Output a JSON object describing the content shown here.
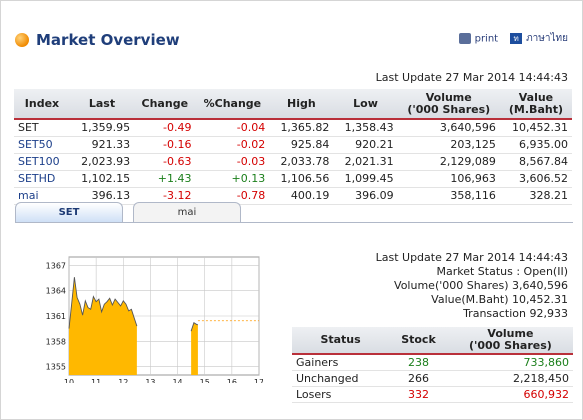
{
  "header": {
    "title": "Market Overview",
    "print_label": "print",
    "lang_label": "ภาษาไทย"
  },
  "last_update": "Last Update 27 Mar 2014 14:44:43",
  "index_table": {
    "columns": [
      "Index",
      "Last",
      "Change",
      "%Change",
      "High",
      "Low",
      "Volume\n('000 Shares)",
      "Value\n(M.Baht)"
    ],
    "rows": [
      {
        "name": "SET",
        "last": "1,359.95",
        "change": "-0.49",
        "pct": "-0.04",
        "high": "1,365.82",
        "low": "1,358.43",
        "volume": "3,640,596",
        "value": "10,452.31",
        "dir": "neg"
      },
      {
        "name": "SET50",
        "last": "921.33",
        "change": "-0.16",
        "pct": "-0.02",
        "high": "925.84",
        "low": "920.21",
        "volume": "203,125",
        "value": "6,935.00",
        "dir": "neg"
      },
      {
        "name": "SET100",
        "last": "2,023.93",
        "change": "-0.63",
        "pct": "-0.03",
        "high": "2,033.78",
        "low": "2,021.31",
        "volume": "2,129,089",
        "value": "8,567.84",
        "dir": "neg"
      },
      {
        "name": "SETHD",
        "last": "1,102.15",
        "change": "+1.43",
        "pct": "+0.13",
        "high": "1,106.56",
        "low": "1,099.45",
        "volume": "106,963",
        "value": "3,606.52",
        "dir": "pos"
      },
      {
        "name": "mai",
        "last": "396.13",
        "change": "-3.12",
        "pct": "-0.78",
        "high": "400.19",
        "low": "396.09",
        "volume": "358,116",
        "value": "328.21",
        "dir": "neg"
      }
    ]
  },
  "tabs": [
    {
      "label": "SET",
      "active": true
    },
    {
      "label": "mai",
      "active": false
    }
  ],
  "market_info": {
    "last_update": "Last Update 27 Mar 2014 14:44:43",
    "status": "Market Status : Open(II)",
    "volume": "Volume('000 Shares) 3,640,596",
    "value": "Value(M.Baht) 10,452.31",
    "transaction": "Transaction 92,933"
  },
  "status_table": {
    "columns": [
      "Status",
      "Stock",
      "Volume\n('000 Shares)"
    ],
    "rows": [
      {
        "status": "Gainers",
        "stock": "238",
        "volume": "733,860",
        "color": "#1b7f1b"
      },
      {
        "status": "Unchanged",
        "stock": "266",
        "volume": "2,218,450",
        "color": "#222222"
      },
      {
        "status": "Losers",
        "stock": "332",
        "volume": "660,932",
        "color": "#d40000"
      }
    ]
  },
  "chart_data": {
    "type": "area",
    "x_ticks": [
      10,
      11,
      12,
      13,
      14,
      15,
      16,
      17
    ],
    "y_ticks": [
      1355,
      1358,
      1361,
      1364,
      1367
    ],
    "xlim": [
      10,
      17
    ],
    "ylim": [
      1354,
      1368
    ],
    "reference_line": 1360.44,
    "fill_color": "#ffb800",
    "x": [
      10.0,
      10.1,
      10.2,
      10.3,
      10.4,
      10.5,
      10.6,
      10.7,
      10.8,
      10.9,
      11.0,
      11.1,
      11.2,
      11.3,
      11.4,
      11.5,
      11.6,
      11.7,
      11.8,
      11.9,
      12.0,
      12.1,
      12.2,
      12.3,
      12.4,
      12.5,
      14.5,
      14.6,
      14.7,
      14.75
    ],
    "values": [
      1359.5,
      1362.5,
      1365.6,
      1363.2,
      1362.4,
      1361.1,
      1362.8,
      1362.0,
      1361.8,
      1363.3,
      1362.7,
      1363.0,
      1361.5,
      1362.4,
      1362.7,
      1363.1,
      1362.3,
      1363.0,
      1362.6,
      1362.2,
      1362.8,
      1362.4,
      1361.6,
      1361.8,
      1360.8,
      1359.8,
      1359.2,
      1360.2,
      1360.0,
      1359.95
    ]
  }
}
